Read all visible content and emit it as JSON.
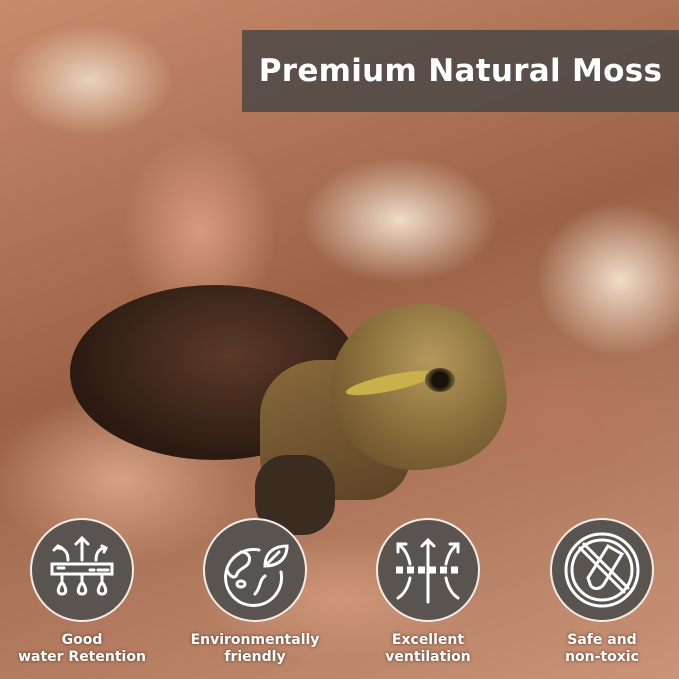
{
  "banner": {
    "title": "Premium Natural Moss"
  },
  "colors": {
    "banner_bg": "#4e4947",
    "icon_circle": "#5a5450",
    "text": "#ffffff"
  },
  "features": [
    {
      "icon": "water-retention-icon",
      "line1": "Good",
      "line2": "water Retention"
    },
    {
      "icon": "eco-earth-leaf-icon",
      "line1": "Environmentally",
      "line2": "friendly"
    },
    {
      "icon": "ventilation-arrows-icon",
      "line1": "Excellent",
      "line2": "ventilation"
    },
    {
      "icon": "non-toxic-prohibited-icon",
      "line1": "Safe and",
      "line2": "non-toxic"
    }
  ]
}
